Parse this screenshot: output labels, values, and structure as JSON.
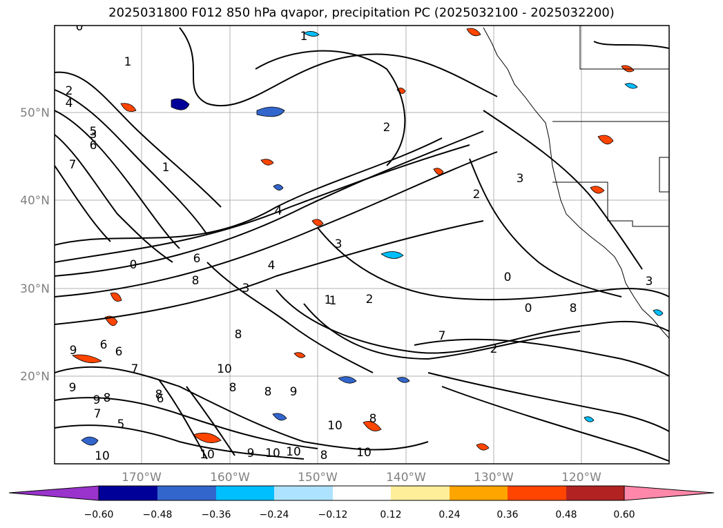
{
  "title": "2025031800 F012 850 hPa qvapor, precipitation PC (2025032100 - 2025032200)",
  "lat_labels": [
    "50°N",
    "40°N",
    "30°N",
    "20°N"
  ],
  "lon_labels": [
    "170°W",
    "160°W",
    "150°W",
    "140°W",
    "130°W",
    "120°W"
  ],
  "colorbar": {
    "ticks": [
      "−0.60",
      "−0.48",
      "−0.36",
      "−0.24",
      "−0.12",
      "0.12",
      "0.24",
      "0.36",
      "0.48",
      "0.60"
    ],
    "colors": [
      "#9933cc",
      "#000099",
      "#3366cc",
      "#00bfff",
      "#aee3ff",
      "#ffffff",
      "#ffee99",
      "#ffa500",
      "#ff4500",
      "#b22222",
      "#ff88aa"
    ]
  },
  "contour_labels": [
    "0",
    "1",
    "1",
    "2",
    "3",
    "4",
    "5",
    "6",
    "7",
    "1",
    "2",
    "2",
    "4",
    "3",
    "0",
    "8",
    "3",
    "1",
    "2",
    "6",
    "4",
    "3",
    "2",
    "3",
    "0",
    "0",
    "9",
    "6",
    "8",
    "9",
    "6",
    "9",
    "8",
    "7",
    "10",
    "10",
    "8",
    "8",
    "9",
    "7",
    "10",
    "10",
    "10",
    "8",
    "9",
    "10",
    "10",
    "5",
    "7",
    "8",
    "1",
    "8",
    "6",
    "8"
  ]
}
